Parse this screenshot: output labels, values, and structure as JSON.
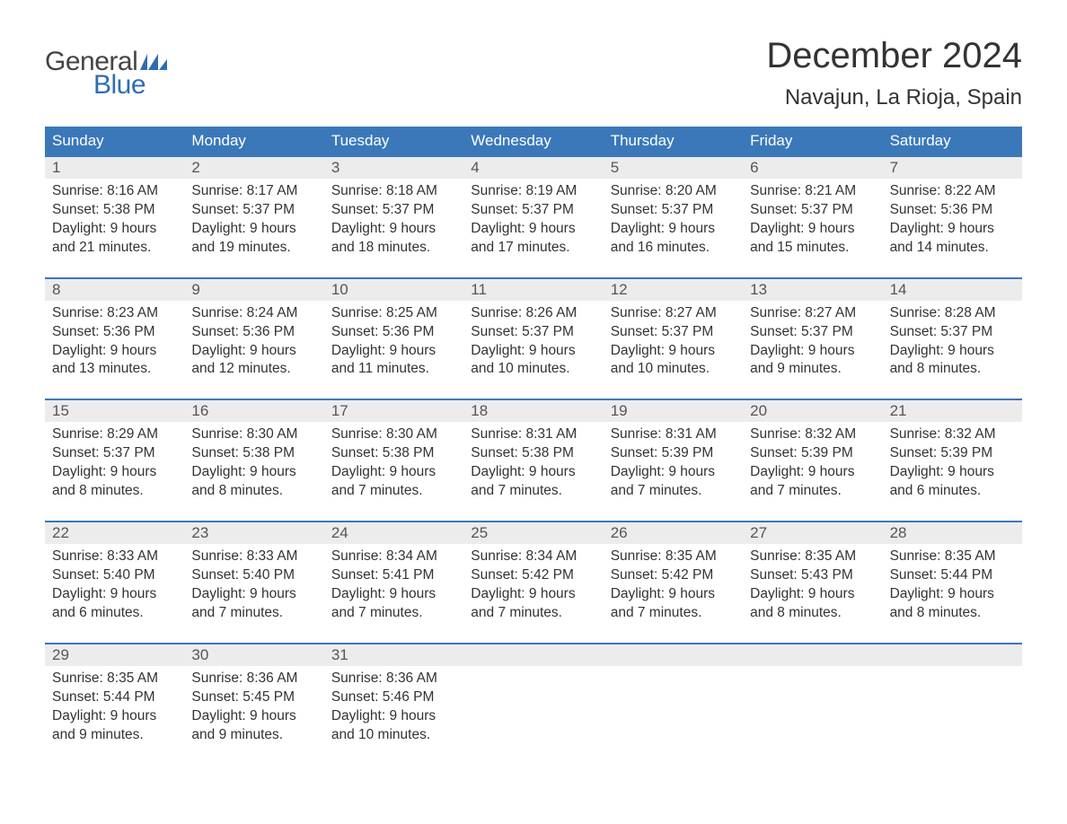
{
  "logo": {
    "text_general": "General",
    "text_blue": "Blue",
    "flag_color": "#2f6db3"
  },
  "header": {
    "month_title": "December 2024",
    "location": "Navajun, La Rioja, Spain"
  },
  "colors": {
    "header_bg": "#3a78b9",
    "header_text": "#ffffff",
    "daynum_bg": "#ececec",
    "week_border": "#3a78b9",
    "body_text": "#333333",
    "logo_blue": "#2f6db3",
    "logo_gray": "#444444",
    "background": "#ffffff"
  },
  "typography": {
    "title_fontsize": 40,
    "location_fontsize": 24,
    "weekday_fontsize": 17,
    "daynum_fontsize": 17,
    "details_fontsize": 15.5,
    "logo_fontsize": 30,
    "font_family": "Arial"
  },
  "weekdays": [
    "Sunday",
    "Monday",
    "Tuesday",
    "Wednesday",
    "Thursday",
    "Friday",
    "Saturday"
  ],
  "weeks": [
    [
      {
        "day": "1",
        "sunrise": "Sunrise: 8:16 AM",
        "sunset": "Sunset: 5:38 PM",
        "daylight1": "Daylight: 9 hours",
        "daylight2": "and 21 minutes."
      },
      {
        "day": "2",
        "sunrise": "Sunrise: 8:17 AM",
        "sunset": "Sunset: 5:37 PM",
        "daylight1": "Daylight: 9 hours",
        "daylight2": "and 19 minutes."
      },
      {
        "day": "3",
        "sunrise": "Sunrise: 8:18 AM",
        "sunset": "Sunset: 5:37 PM",
        "daylight1": "Daylight: 9 hours",
        "daylight2": "and 18 minutes."
      },
      {
        "day": "4",
        "sunrise": "Sunrise: 8:19 AM",
        "sunset": "Sunset: 5:37 PM",
        "daylight1": "Daylight: 9 hours",
        "daylight2": "and 17 minutes."
      },
      {
        "day": "5",
        "sunrise": "Sunrise: 8:20 AM",
        "sunset": "Sunset: 5:37 PM",
        "daylight1": "Daylight: 9 hours",
        "daylight2": "and 16 minutes."
      },
      {
        "day": "6",
        "sunrise": "Sunrise: 8:21 AM",
        "sunset": "Sunset: 5:37 PM",
        "daylight1": "Daylight: 9 hours",
        "daylight2": "and 15 minutes."
      },
      {
        "day": "7",
        "sunrise": "Sunrise: 8:22 AM",
        "sunset": "Sunset: 5:36 PM",
        "daylight1": "Daylight: 9 hours",
        "daylight2": "and 14 minutes."
      }
    ],
    [
      {
        "day": "8",
        "sunrise": "Sunrise: 8:23 AM",
        "sunset": "Sunset: 5:36 PM",
        "daylight1": "Daylight: 9 hours",
        "daylight2": "and 13 minutes."
      },
      {
        "day": "9",
        "sunrise": "Sunrise: 8:24 AM",
        "sunset": "Sunset: 5:36 PM",
        "daylight1": "Daylight: 9 hours",
        "daylight2": "and 12 minutes."
      },
      {
        "day": "10",
        "sunrise": "Sunrise: 8:25 AM",
        "sunset": "Sunset: 5:36 PM",
        "daylight1": "Daylight: 9 hours",
        "daylight2": "and 11 minutes."
      },
      {
        "day": "11",
        "sunrise": "Sunrise: 8:26 AM",
        "sunset": "Sunset: 5:37 PM",
        "daylight1": "Daylight: 9 hours",
        "daylight2": "and 10 minutes."
      },
      {
        "day": "12",
        "sunrise": "Sunrise: 8:27 AM",
        "sunset": "Sunset: 5:37 PM",
        "daylight1": "Daylight: 9 hours",
        "daylight2": "and 10 minutes."
      },
      {
        "day": "13",
        "sunrise": "Sunrise: 8:27 AM",
        "sunset": "Sunset: 5:37 PM",
        "daylight1": "Daylight: 9 hours",
        "daylight2": "and 9 minutes."
      },
      {
        "day": "14",
        "sunrise": "Sunrise: 8:28 AM",
        "sunset": "Sunset: 5:37 PM",
        "daylight1": "Daylight: 9 hours",
        "daylight2": "and 8 minutes."
      }
    ],
    [
      {
        "day": "15",
        "sunrise": "Sunrise: 8:29 AM",
        "sunset": "Sunset: 5:37 PM",
        "daylight1": "Daylight: 9 hours",
        "daylight2": "and 8 minutes."
      },
      {
        "day": "16",
        "sunrise": "Sunrise: 8:30 AM",
        "sunset": "Sunset: 5:38 PM",
        "daylight1": "Daylight: 9 hours",
        "daylight2": "and 8 minutes."
      },
      {
        "day": "17",
        "sunrise": "Sunrise: 8:30 AM",
        "sunset": "Sunset: 5:38 PM",
        "daylight1": "Daylight: 9 hours",
        "daylight2": "and 7 minutes."
      },
      {
        "day": "18",
        "sunrise": "Sunrise: 8:31 AM",
        "sunset": "Sunset: 5:38 PM",
        "daylight1": "Daylight: 9 hours",
        "daylight2": "and 7 minutes."
      },
      {
        "day": "19",
        "sunrise": "Sunrise: 8:31 AM",
        "sunset": "Sunset: 5:39 PM",
        "daylight1": "Daylight: 9 hours",
        "daylight2": "and 7 minutes."
      },
      {
        "day": "20",
        "sunrise": "Sunrise: 8:32 AM",
        "sunset": "Sunset: 5:39 PM",
        "daylight1": "Daylight: 9 hours",
        "daylight2": "and 7 minutes."
      },
      {
        "day": "21",
        "sunrise": "Sunrise: 8:32 AM",
        "sunset": "Sunset: 5:39 PM",
        "daylight1": "Daylight: 9 hours",
        "daylight2": "and 6 minutes."
      }
    ],
    [
      {
        "day": "22",
        "sunrise": "Sunrise: 8:33 AM",
        "sunset": "Sunset: 5:40 PM",
        "daylight1": "Daylight: 9 hours",
        "daylight2": "and 6 minutes."
      },
      {
        "day": "23",
        "sunrise": "Sunrise: 8:33 AM",
        "sunset": "Sunset: 5:40 PM",
        "daylight1": "Daylight: 9 hours",
        "daylight2": "and 7 minutes."
      },
      {
        "day": "24",
        "sunrise": "Sunrise: 8:34 AM",
        "sunset": "Sunset: 5:41 PM",
        "daylight1": "Daylight: 9 hours",
        "daylight2": "and 7 minutes."
      },
      {
        "day": "25",
        "sunrise": "Sunrise: 8:34 AM",
        "sunset": "Sunset: 5:42 PM",
        "daylight1": "Daylight: 9 hours",
        "daylight2": "and 7 minutes."
      },
      {
        "day": "26",
        "sunrise": "Sunrise: 8:35 AM",
        "sunset": "Sunset: 5:42 PM",
        "daylight1": "Daylight: 9 hours",
        "daylight2": "and 7 minutes."
      },
      {
        "day": "27",
        "sunrise": "Sunrise: 8:35 AM",
        "sunset": "Sunset: 5:43 PM",
        "daylight1": "Daylight: 9 hours",
        "daylight2": "and 8 minutes."
      },
      {
        "day": "28",
        "sunrise": "Sunrise: 8:35 AM",
        "sunset": "Sunset: 5:44 PM",
        "daylight1": "Daylight: 9 hours",
        "daylight2": "and 8 minutes."
      }
    ],
    [
      {
        "day": "29",
        "sunrise": "Sunrise: 8:35 AM",
        "sunset": "Sunset: 5:44 PM",
        "daylight1": "Daylight: 9 hours",
        "daylight2": "and 9 minutes."
      },
      {
        "day": "30",
        "sunrise": "Sunrise: 8:36 AM",
        "sunset": "Sunset: 5:45 PM",
        "daylight1": "Daylight: 9 hours",
        "daylight2": "and 9 minutes."
      },
      {
        "day": "31",
        "sunrise": "Sunrise: 8:36 AM",
        "sunset": "Sunset: 5:46 PM",
        "daylight1": "Daylight: 9 hours",
        "daylight2": "and 10 minutes."
      },
      null,
      null,
      null,
      null
    ]
  ]
}
